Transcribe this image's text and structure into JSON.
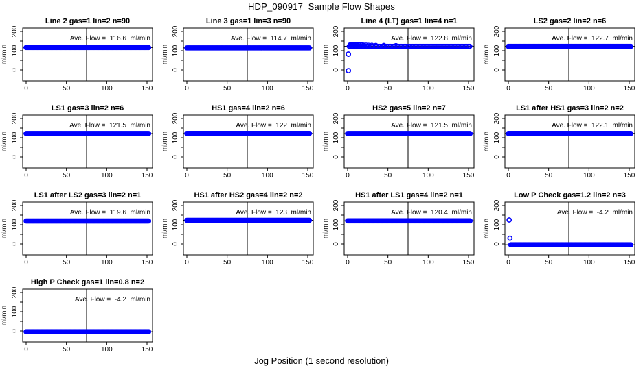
{
  "figure": {
    "title": "HDP_090917  Sample Flow Shapes",
    "xlabel": "Jog Position (1 second resolution)",
    "ylabel": "ml/min"
  },
  "axes": {
    "x_ticks": [
      0,
      50,
      100,
      150
    ],
    "y_ticks": [
      0,
      100,
      200
    ],
    "y_minor_ticks": [
      50,
      150
    ],
    "xlim": [
      -4,
      157
    ],
    "ylim": [
      -55,
      218
    ],
    "vline_x": 75
  },
  "colors": {
    "points": "#0000ff",
    "lines": "#000000",
    "background": "#ffffff"
  },
  "chart_data": [
    {
      "type": "scatter",
      "title": "Line 2 gas=1 lin=2 n=90",
      "ave_flow": 116.6,
      "ave_label": "Ave. Flow =  116.6  ml/min",
      "band": {
        "x_start": 0,
        "x_end": 152,
        "y": 116.6
      },
      "outliers": [],
      "extra": [],
      "sparse": false
    },
    {
      "type": "scatter",
      "title": "Line 3 gas=1 lin=3 n=90",
      "ave_flow": 114.7,
      "ave_label": "Ave. Flow =  114.7  ml/min",
      "band": {
        "x_start": 0,
        "x_end": 152,
        "y": 114.7
      },
      "outliers": [],
      "extra": [],
      "sparse": false
    },
    {
      "type": "scatter",
      "title": "Line 4 (LT) gas=1 lin=4 n=1",
      "ave_flow": 122.8,
      "ave_label": "Ave. Flow =  122.8  ml/min",
      "band": {
        "x_start": 2,
        "x_end": 152,
        "y": 122.8
      },
      "outliers": [
        [
          1,
          -4
        ],
        [
          1,
          82
        ]
      ],
      "extra": [
        [
          3,
          130
        ],
        [
          4,
          131
        ],
        [
          5,
          130
        ],
        [
          6,
          132
        ],
        [
          7,
          131
        ],
        [
          8,
          130
        ],
        [
          9,
          132
        ],
        [
          10,
          131
        ],
        [
          11,
          130
        ],
        [
          12,
          131
        ],
        [
          14,
          130
        ],
        [
          16,
          131
        ],
        [
          18,
          130
        ],
        [
          20,
          129
        ],
        [
          23,
          129
        ],
        [
          26,
          128
        ],
        [
          30,
          128
        ],
        [
          35,
          127
        ],
        [
          45,
          127
        ],
        [
          60,
          126
        ]
      ],
      "sparse": true
    },
    {
      "type": "scatter",
      "title": "LS2 gas=2 lin=2 n=6",
      "ave_flow": 122.7,
      "ave_label": "Ave. Flow =  122.7  ml/min",
      "band": {
        "x_start": 0,
        "x_end": 152,
        "y": 122.7
      },
      "outliers": [],
      "extra": [],
      "sparse": false
    },
    {
      "type": "scatter",
      "title": "LS1 gas=3 lin=2 n=6",
      "ave_flow": 121.5,
      "ave_label": "Ave. Flow =  121.5  ml/min",
      "band": {
        "x_start": 0,
        "x_end": 152,
        "y": 121.5
      },
      "outliers": [],
      "extra": [],
      "sparse": false
    },
    {
      "type": "scatter",
      "title": "HS1 gas=4 lin=2 n=6",
      "ave_flow": 122,
      "ave_label": "Ave. Flow =  122  ml/min",
      "band": {
        "x_start": 0,
        "x_end": 152,
        "y": 122
      },
      "outliers": [],
      "extra": [],
      "sparse": false
    },
    {
      "type": "scatter",
      "title": "HS2 gas=5 lin=2 n=7",
      "ave_flow": 121.5,
      "ave_label": "Ave. Flow =  121.5  ml/min",
      "band": {
        "x_start": 0,
        "x_end": 152,
        "y": 121.5
      },
      "outliers": [],
      "extra": [],
      "sparse": false
    },
    {
      "type": "scatter",
      "title": "LS1 after HS1 gas=3 lin=2 n=2",
      "ave_flow": 122.1,
      "ave_label": "Ave. Flow =  122.1  ml/min",
      "band": {
        "x_start": 0,
        "x_end": 152,
        "y": 122.1
      },
      "outliers": [],
      "extra": [],
      "sparse": false
    },
    {
      "type": "scatter",
      "title": "LS1 after LS2 gas=3 lin=2 n=1",
      "ave_flow": 119.6,
      "ave_label": "Ave. Flow =  119.6  ml/min",
      "band": {
        "x_start": 0,
        "x_end": 152,
        "y": 119.6
      },
      "outliers": [],
      "extra": [],
      "sparse": false
    },
    {
      "type": "scatter",
      "title": "HS1 after HS2 gas=4 lin=2 n=2",
      "ave_flow": 123,
      "ave_label": "Ave. Flow =  123  ml/min",
      "band": {
        "x_start": 0,
        "x_end": 152,
        "y": 123
      },
      "outliers": [],
      "extra": [],
      "sparse": false
    },
    {
      "type": "scatter",
      "title": "HS1 after LS1 gas=4 lin=2 n=1",
      "ave_flow": 120.4,
      "ave_label": "Ave. Flow =  120.4  ml/min",
      "band": {
        "x_start": 0,
        "x_end": 152,
        "y": 120.4
      },
      "outliers": [],
      "extra": [],
      "sparse": false
    },
    {
      "type": "scatter",
      "title": "Low P Check gas=1.2 lin=2 n=3",
      "ave_flow": -4.2,
      "ave_label": "Ave. Flow =  -4.2  ml/min",
      "band": {
        "x_start": 3,
        "x_end": 152,
        "y": -4.2
      },
      "outliers": [
        [
          1,
          125
        ],
        [
          2,
          30
        ]
      ],
      "extra": [],
      "sparse": false
    },
    {
      "type": "scatter",
      "title": "High P Check gas=1 lin=0.8 n=2",
      "ave_flow": -4.2,
      "ave_label": "Ave. Flow =  -4.2  ml/min",
      "band": {
        "x_start": 0,
        "x_end": 152,
        "y": -4.2
      },
      "outliers": [],
      "extra": [],
      "sparse": false
    }
  ]
}
